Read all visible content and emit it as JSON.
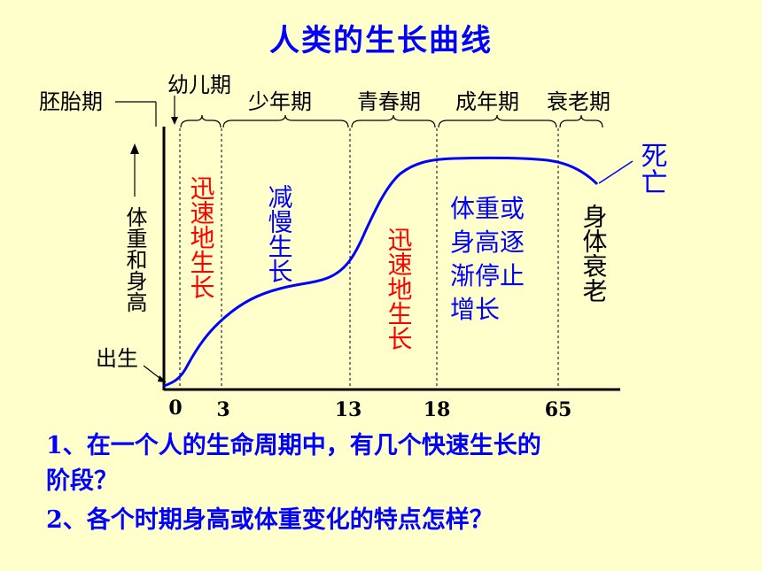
{
  "title": "人类的生长曲线",
  "stages": {
    "embryo": "胚胎期",
    "infant": "幼儿期",
    "youth": "少年期",
    "adolescence": "青春期",
    "adult": "成年期",
    "old_age": "衰老期"
  },
  "y_axis_label": "体重和身高",
  "birth_label": "出生",
  "death_label": "死亡",
  "x_ticks": [
    "0",
    "3",
    "13",
    "18",
    "65"
  ],
  "annotations": {
    "rapid_1": "迅速地生长",
    "slow": "减慢生长",
    "rapid_2": "迅速地生长",
    "plateau": [
      "体重或",
      "身高逐",
      "渐停止",
      "增长"
    ],
    "decline": "身体衰老"
  },
  "questions": {
    "q1_line1": "1、在一个人的生命周期中，有几个快速生长的",
    "q1_line2": "阶段？",
    "q2": "2、各个时期身高或体重变化的特点怎样？"
  },
  "colors": {
    "background": "#ffffcc",
    "title": "#0000ff",
    "curve": "#0000ff",
    "rapid": "#ff0000",
    "text": "#000000"
  }
}
